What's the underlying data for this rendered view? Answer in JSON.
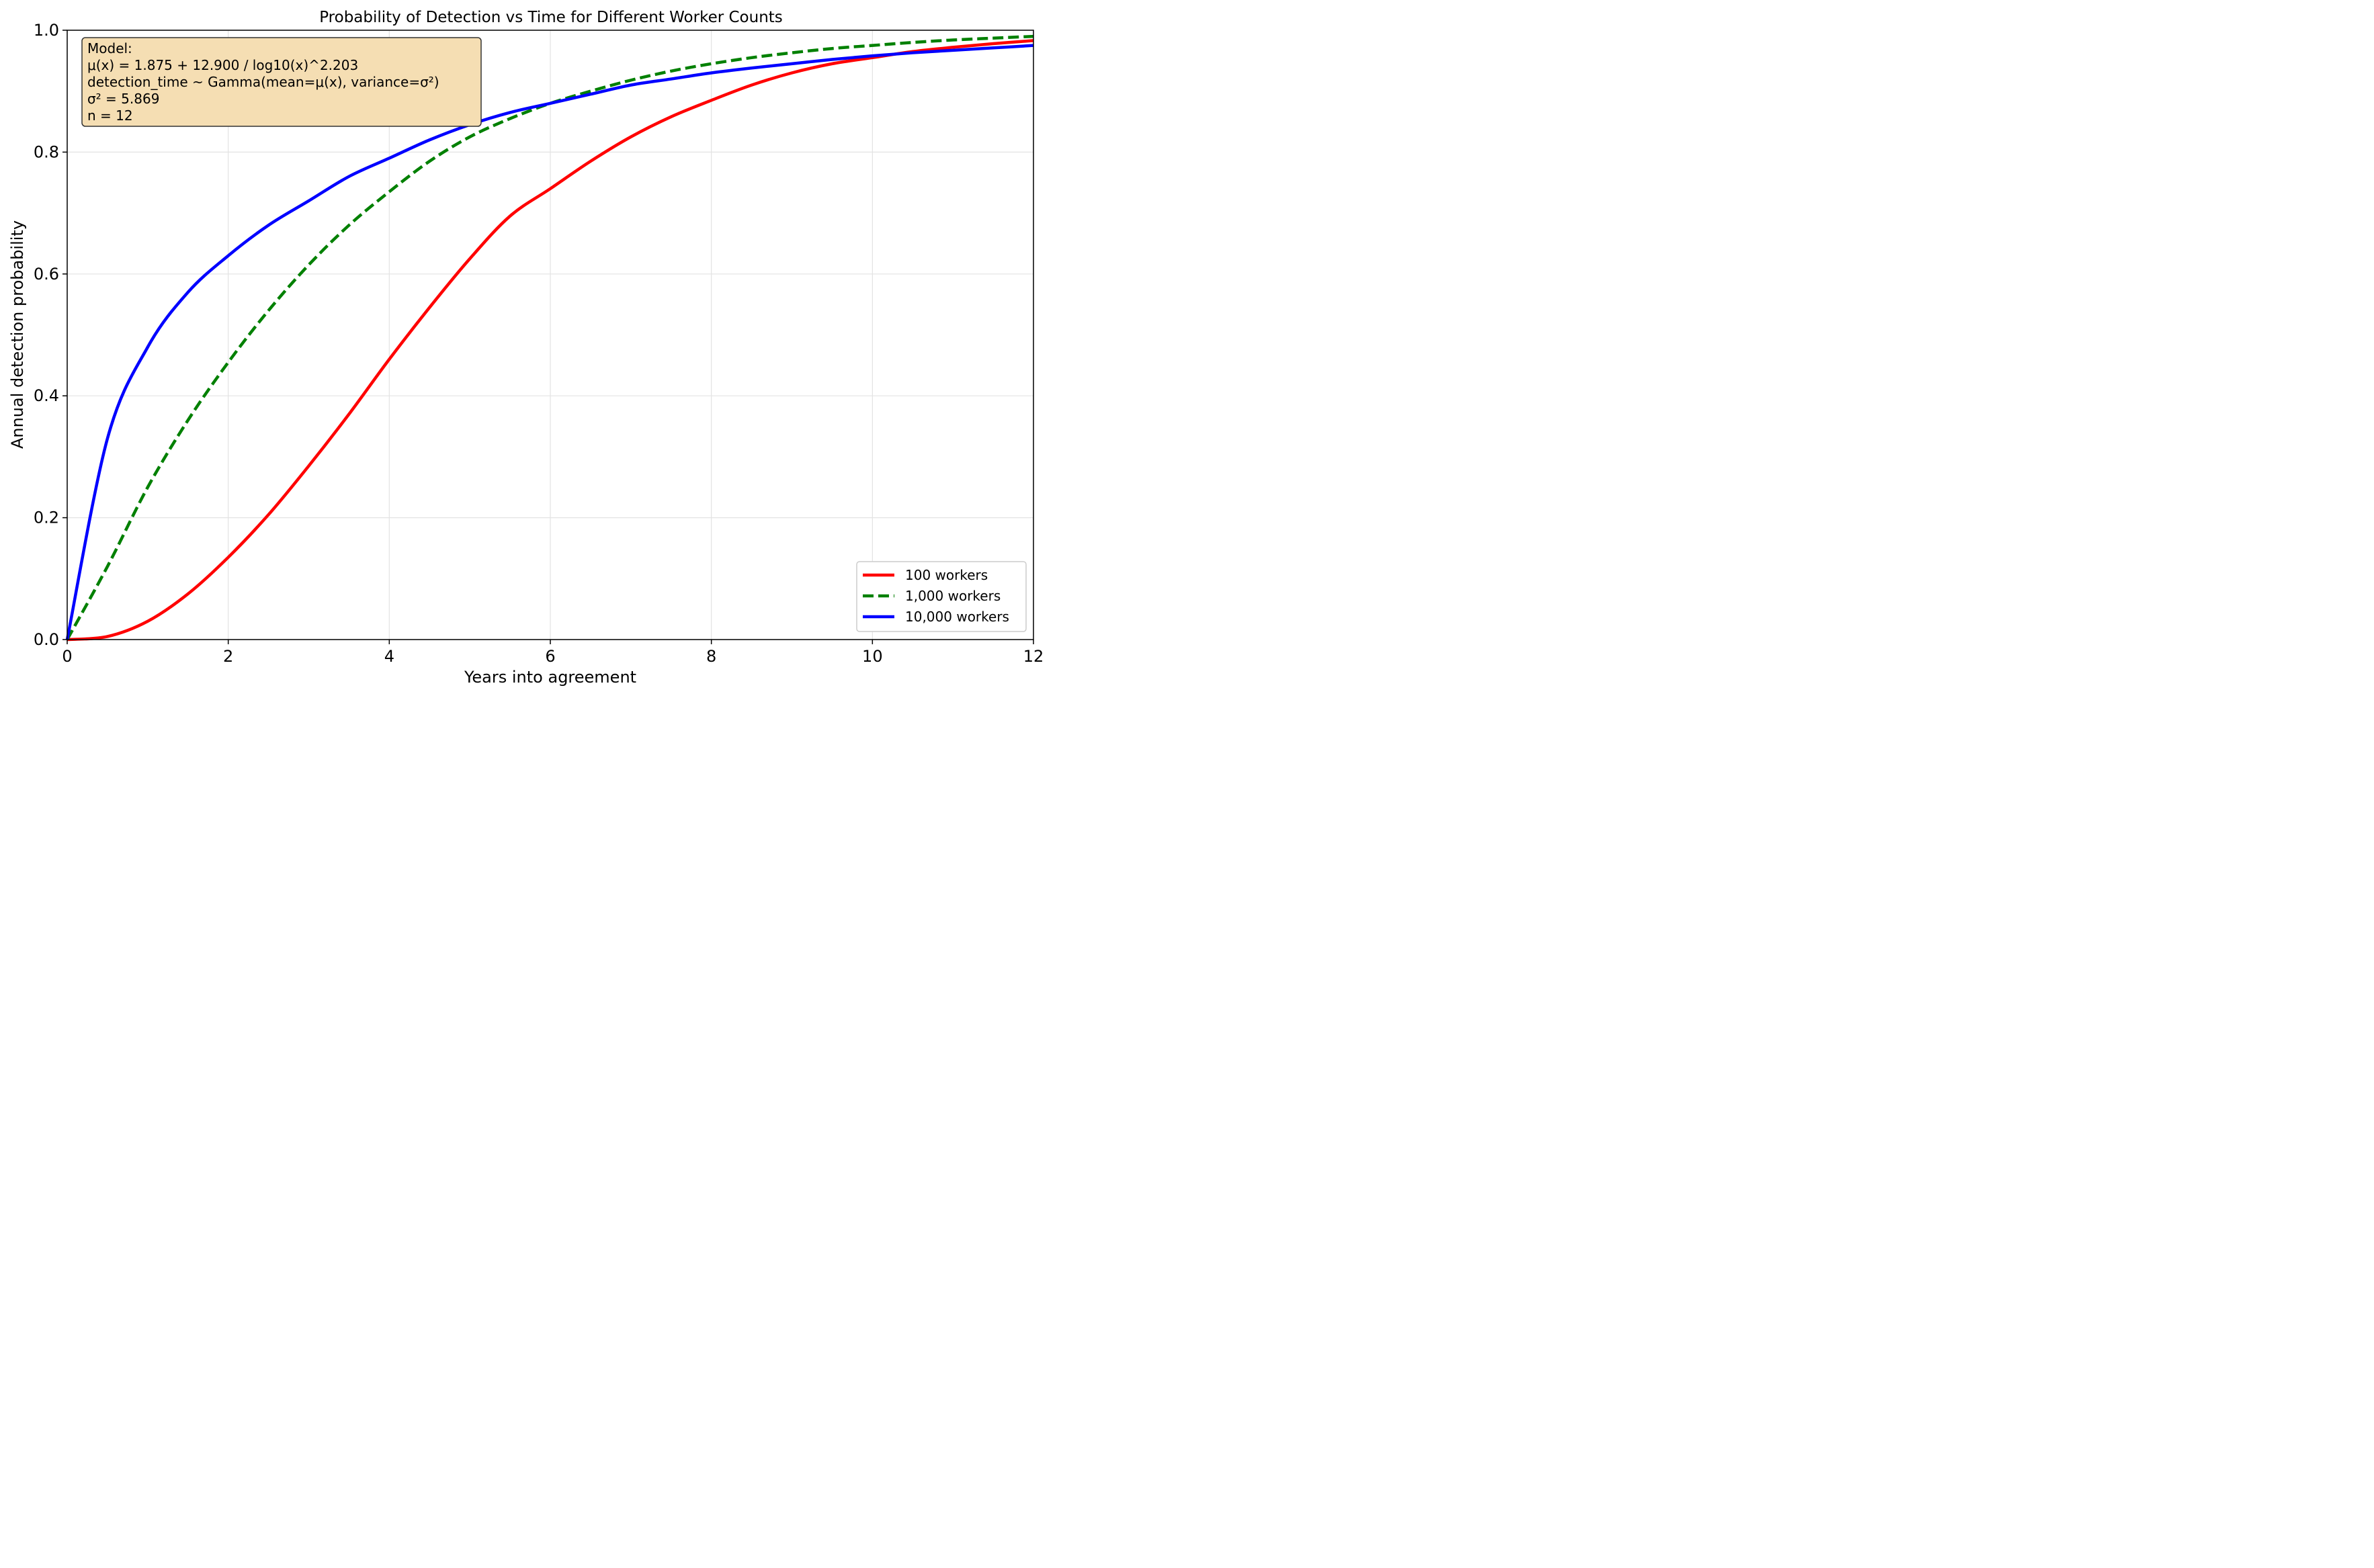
{
  "chart_data": {
    "type": "line",
    "title": "Probability of Detection vs Time for Different Worker Counts",
    "xlabel": "Years into agreement",
    "ylabel": "Annual detection probability",
    "xlim": [
      0,
      12
    ],
    "ylim": [
      0,
      1
    ],
    "x_ticks": [
      0,
      2,
      4,
      6,
      8,
      10,
      12
    ],
    "y_ticks": [
      "0.0",
      "0.2",
      "0.4",
      "0.6",
      "0.8",
      "1.0"
    ],
    "grid": true,
    "legend_position": "bottom-right",
    "annotation": {
      "lines": [
        "Model:",
        "μ(x) = 1.875 + 12.900 / log10(x)^2.203",
        "detection_time ~ Gamma(mean=μ(x), variance=σ²)",
        "σ² = 5.869",
        "n = 12"
      ],
      "position": "top-left",
      "background": "#f5deb3"
    },
    "x": [
      0,
      0.5,
      1,
      1.5,
      2,
      2.5,
      3,
      3.5,
      4,
      4.5,
      5,
      5.5,
      6,
      6.5,
      7,
      7.5,
      8,
      8.5,
      9,
      9.5,
      10,
      10.5,
      11,
      11.5,
      12
    ],
    "series": [
      {
        "name": "100 workers",
        "color": "#ff0000",
        "dash": "solid",
        "values": [
          0,
          0.005,
          0.03,
          0.075,
          0.135,
          0.205,
          0.285,
          0.37,
          0.46,
          0.545,
          0.625,
          0.695,
          0.74,
          0.785,
          0.825,
          0.858,
          0.885,
          0.91,
          0.93,
          0.945,
          0.955,
          0.965,
          0.972,
          0.978,
          0.983
        ]
      },
      {
        "name": "1,000 workers",
        "color": "#008000",
        "dash": "dashed",
        "values": [
          0,
          0.12,
          0.25,
          0.36,
          0.455,
          0.54,
          0.615,
          0.68,
          0.735,
          0.785,
          0.825,
          0.855,
          0.88,
          0.9,
          0.918,
          0.933,
          0.945,
          0.955,
          0.963,
          0.97,
          0.975,
          0.98,
          0.984,
          0.987,
          0.99
        ]
      },
      {
        "name": "10,000 workers",
        "color": "#0000ff",
        "dash": "solid",
        "values": [
          0,
          0.33,
          0.48,
          0.57,
          0.63,
          0.68,
          0.72,
          0.76,
          0.79,
          0.82,
          0.845,
          0.865,
          0.88,
          0.895,
          0.91,
          0.92,
          0.93,
          0.938,
          0.945,
          0.952,
          0.958,
          0.963,
          0.967,
          0.971,
          0.975
        ]
      }
    ]
  }
}
